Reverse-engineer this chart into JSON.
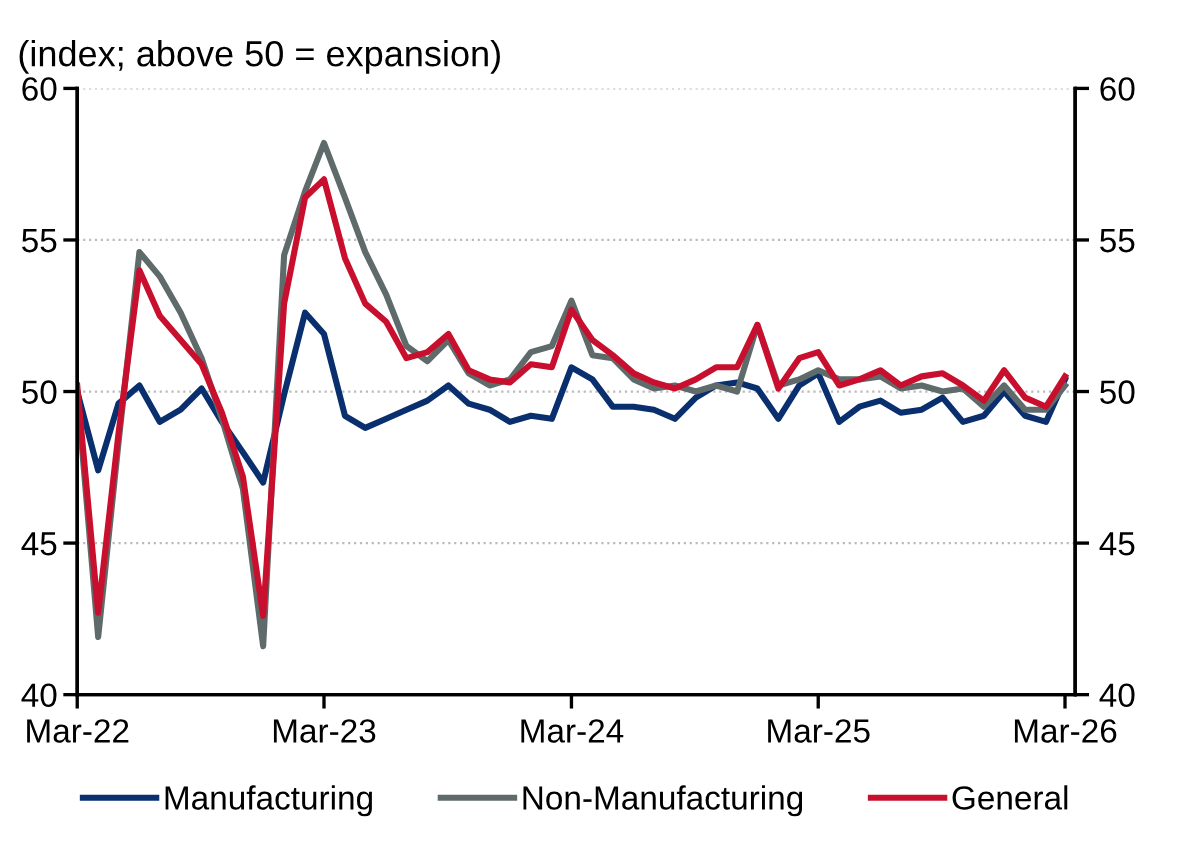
{
  "chart_data": {
    "type": "line",
    "title": "(index; above 50 = expansion)",
    "x": [
      "2022-03",
      "2022-04",
      "2022-05",
      "2022-06",
      "2022-07",
      "2022-08",
      "2022-09",
      "2022-10",
      "2022-11",
      "2022-12",
      "2023-01",
      "2023-02",
      "2023-03",
      "2023-04",
      "2023-05",
      "2023-06",
      "2023-07",
      "2023-08",
      "2023-09",
      "2023-10",
      "2023-11",
      "2023-12",
      "2024-01",
      "2024-02",
      "2024-03",
      "2024-04",
      "2024-05",
      "2024-06",
      "2024-07",
      "2024-08",
      "2024-09",
      "2024-10",
      "2024-11",
      "2024-12",
      "2025-01",
      "2025-02",
      "2025-03",
      "2025-04",
      "2025-05",
      "2025-06",
      "2025-07",
      "2025-08",
      "2025-09",
      "2025-10",
      "2025-11",
      "2025-12",
      "2026-01",
      "2026-02",
      "2026-03"
    ],
    "series": [
      {
        "name": "Manufacturing",
        "color": "#0a2f6e",
        "values": [
          50.0,
          47.4,
          49.6,
          50.2,
          49.0,
          49.4,
          50.1,
          49.0,
          48.0,
          47.0,
          49.9,
          52.6,
          51.9,
          49.2,
          48.8,
          49.1,
          49.4,
          49.7,
          50.2,
          49.6,
          49.4,
          49.0,
          49.2,
          49.1,
          50.8,
          50.4,
          49.5,
          49.5,
          49.4,
          49.1,
          49.8,
          50.2,
          50.3,
          50.1,
          49.1,
          50.2,
          50.6,
          49.0,
          49.5,
          49.7,
          49.3,
          49.4,
          49.8,
          49.0,
          49.2,
          50.0,
          49.2,
          49.0,
          50.4
        ]
      },
      {
        "name": "Non-Manufacturing",
        "color": "#5f6b6b",
        "values": [
          50.0,
          41.9,
          48.3,
          54.6,
          53.8,
          52.6,
          51.1,
          49.1,
          46.8,
          41.6,
          54.5,
          56.6,
          58.2,
          56.4,
          54.6,
          53.2,
          51.5,
          51.0,
          51.7,
          50.6,
          50.2,
          50.4,
          51.3,
          51.5,
          53.0,
          51.2,
          51.1,
          50.4,
          50.1,
          50.2,
          50.0,
          50.2,
          50.0,
          52.2,
          50.2,
          50.4,
          50.7,
          50.4,
          50.4,
          50.5,
          50.1,
          50.2,
          50.0,
          50.1,
          49.5,
          50.2,
          49.4,
          49.4,
          50.2
        ]
      },
      {
        "name": "General",
        "color": "#c8102e",
        "values": [
          50.2,
          42.7,
          48.6,
          54.0,
          52.5,
          51.7,
          50.9,
          49.3,
          47.2,
          42.6,
          52.9,
          56.4,
          57.0,
          54.4,
          52.9,
          52.3,
          51.1,
          51.3,
          51.9,
          50.7,
          50.4,
          50.3,
          50.9,
          50.8,
          52.7,
          51.7,
          51.2,
          50.6,
          50.3,
          50.1,
          50.4,
          50.8,
          50.8,
          52.2,
          50.1,
          51.1,
          51.3,
          50.2,
          50.4,
          50.7,
          50.2,
          50.5,
          50.6,
          50.2,
          49.7,
          50.7,
          49.8,
          49.5,
          50.5
        ]
      }
    ],
    "xlim": [
      "2022-03",
      "2026-03-16"
    ],
    "xticks": [
      {
        "value": "2022-03",
        "label": "Mar-22"
      },
      {
        "value": "2023-03",
        "label": "Mar-23"
      },
      {
        "value": "2024-03",
        "label": "Mar-24"
      },
      {
        "value": "2025-03",
        "label": "Mar-25"
      },
      {
        "value": "2026-03",
        "label": "Mar-26"
      }
    ],
    "ylim": [
      40,
      60
    ],
    "yticks": [
      40,
      45,
      50,
      55,
      60
    ],
    "y2lim": [
      40,
      60
    ],
    "y2ticks": [
      40,
      45,
      50,
      55,
      60
    ],
    "grid": "y",
    "legend": "bottom",
    "line_style": "solid",
    "marker": "none"
  }
}
